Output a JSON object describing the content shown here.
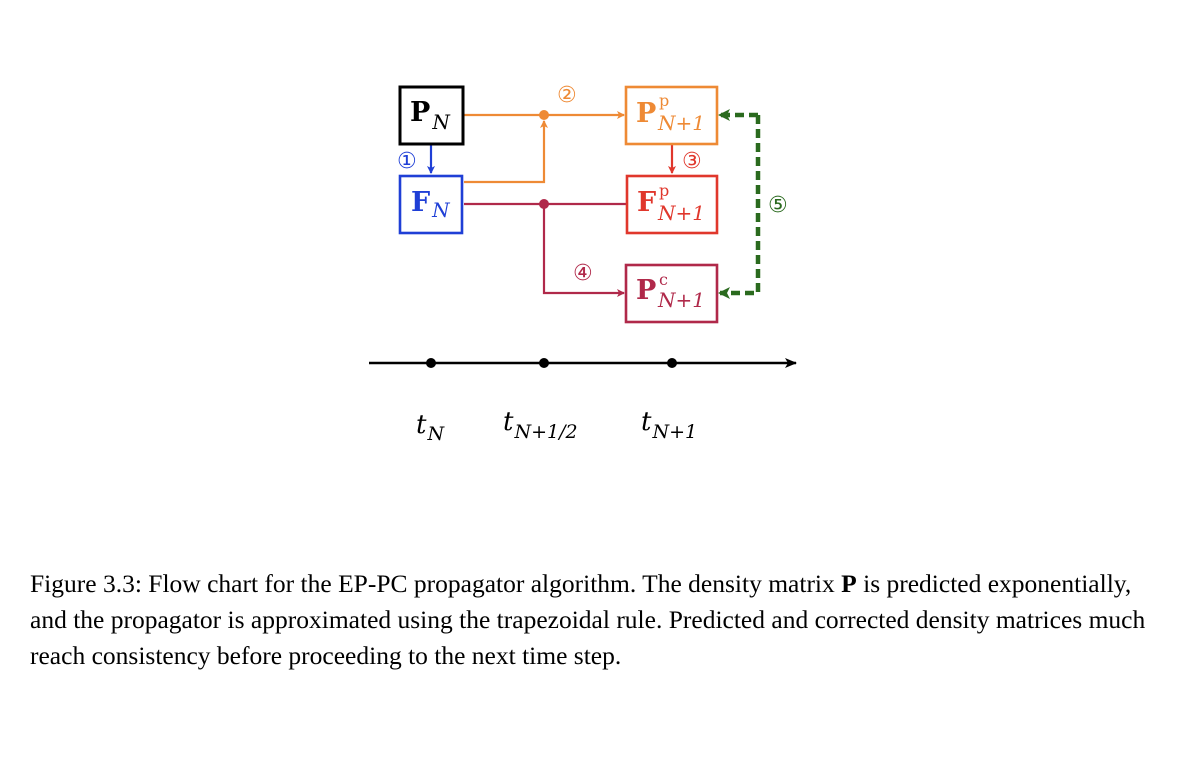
{
  "colors": {
    "black": "#000000",
    "blue": "#1f3fd6",
    "orange": "#ee8a35",
    "red": "#e0372c",
    "crimson": "#b0294a",
    "green": "#2a6a1e"
  },
  "nodes": {
    "p_n": {
      "main": "P",
      "sub": "N",
      "sup": ""
    },
    "f_n": {
      "main": "F",
      "sub": "N",
      "sup": ""
    },
    "p_pred": {
      "main": "P",
      "sub": "N+1",
      "sup": "p"
    },
    "f_pred": {
      "main": "F",
      "sub": "N+1",
      "sup": "p"
    },
    "p_corr": {
      "main": "P",
      "sub": "N+1",
      "sup": "c"
    }
  },
  "steps": [
    "①",
    "②",
    "③",
    "④",
    "⑤"
  ],
  "timeline": {
    "ticks": [
      {
        "main": "t",
        "sub": "N"
      },
      {
        "main": "t",
        "sub": "N+1/2"
      },
      {
        "main": "t",
        "sub": "N+1"
      }
    ]
  },
  "caption": {
    "prefix": "Figure 3.3: Flow chart for the EP-PC propagator algorithm. The density matrix ",
    "bold": "P",
    "suffix": " is predicted exponentially, and the propagator is approximated using the trapezoidal rule. Predicted and corrected density matrices much reach consistency before proceeding to the next time step."
  }
}
